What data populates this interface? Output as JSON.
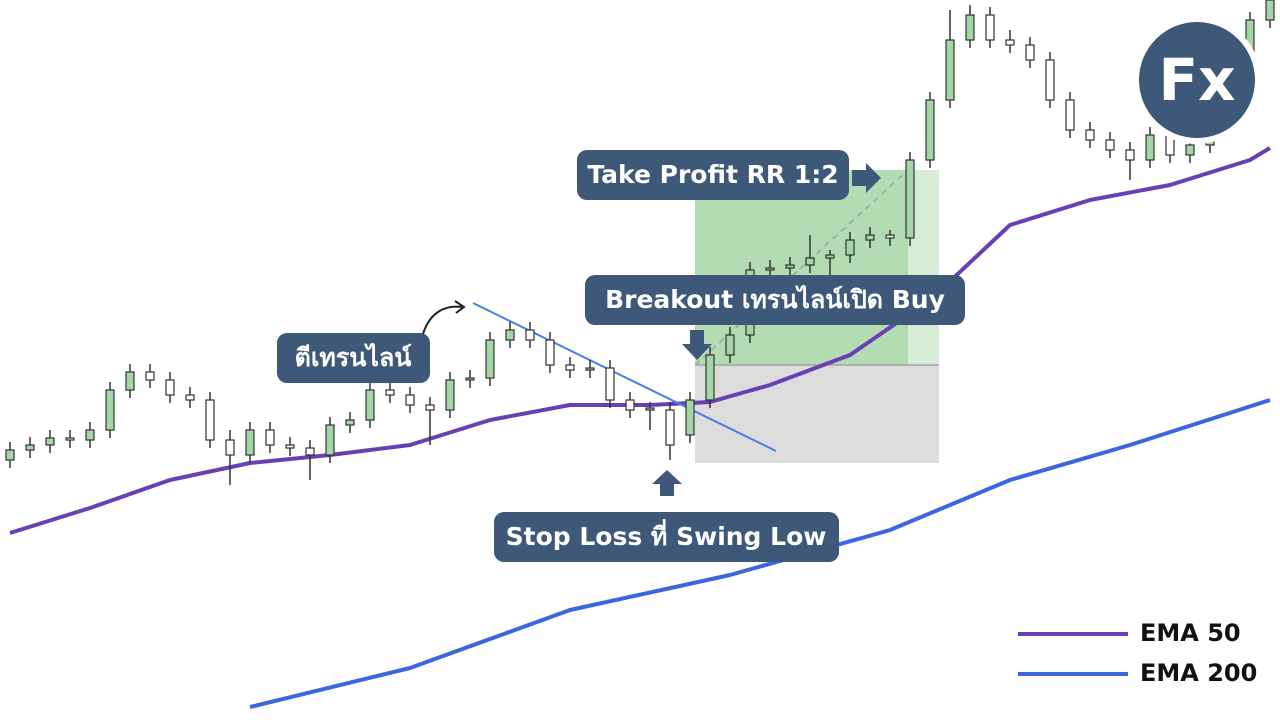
{
  "chart_data": {
    "type": "candlestick",
    "ylim": [
      0,
      720
    ],
    "up_color": "#a5d6a7",
    "down_color": "#ffffff",
    "wick_color": "#333333",
    "ohlc": [
      [
        260,
        278,
        252,
        270
      ],
      [
        270,
        283,
        262,
        275
      ],
      [
        275,
        290,
        267,
        282
      ],
      [
        282,
        290,
        272,
        280
      ],
      [
        280,
        298,
        272,
        290
      ],
      [
        290,
        338,
        282,
        330
      ],
      [
        330,
        356,
        322,
        348
      ],
      [
        348,
        356,
        332,
        340
      ],
      [
        340,
        348,
        317,
        325
      ],
      [
        325,
        333,
        312,
        320
      ],
      [
        320,
        328,
        272,
        280
      ],
      [
        280,
        290,
        235,
        265
      ],
      [
        265,
        298,
        257,
        290
      ],
      [
        290,
        298,
        267,
        275
      ],
      [
        275,
        283,
        264,
        272
      ],
      [
        272,
        280,
        240,
        265
      ],
      [
        265,
        303,
        257,
        295
      ],
      [
        295,
        308,
        287,
        300
      ],
      [
        300,
        338,
        292,
        330
      ],
      [
        330,
        338,
        317,
        325
      ],
      [
        325,
        333,
        307,
        315
      ],
      [
        315,
        323,
        275,
        310
      ],
      [
        310,
        348,
        302,
        340
      ],
      [
        340,
        350,
        332,
        342
      ],
      [
        342,
        388,
        334,
        380
      ],
      [
        380,
        398,
        372,
        390
      ],
      [
        390,
        398,
        372,
        380
      ],
      [
        380,
        388,
        347,
        355
      ],
      [
        355,
        363,
        342,
        350
      ],
      [
        350,
        360,
        342,
        352
      ],
      [
        352,
        360,
        312,
        320
      ],
      [
        320,
        328,
        302,
        310
      ],
      [
        310,
        318,
        290,
        312
      ],
      [
        310,
        318,
        260,
        275
      ],
      [
        285,
        328,
        277,
        320
      ],
      [
        320,
        373,
        312,
        365
      ],
      [
        365,
        393,
        357,
        385
      ],
      [
        385,
        458,
        377,
        450
      ],
      [
        450,
        460,
        442,
        452
      ],
      [
        452,
        463,
        444,
        455
      ],
      [
        455,
        485,
        447,
        462
      ],
      [
        462,
        470,
        440,
        465
      ],
      [
        465,
        488,
        457,
        480
      ],
      [
        480,
        493,
        472,
        485
      ],
      [
        485,
        490,
        474,
        482
      ],
      [
        482,
        568,
        474,
        560
      ],
      [
        560,
        628,
        552,
        620
      ],
      [
        620,
        710,
        612,
        680
      ],
      [
        680,
        715,
        672,
        705
      ],
      [
        705,
        713,
        672,
        680
      ],
      [
        680,
        690,
        667,
        675
      ],
      [
        675,
        683,
        652,
        660
      ],
      [
        660,
        668,
        612,
        620
      ],
      [
        620,
        628,
        582,
        590
      ],
      [
        590,
        598,
        572,
        580
      ],
      [
        580,
        588,
        562,
        570
      ],
      [
        570,
        578,
        540,
        560
      ],
      [
        560,
        593,
        552,
        585
      ],
      [
        585,
        593,
        557,
        565
      ],
      [
        565,
        583,
        557,
        575
      ],
      [
        575,
        608,
        567,
        600
      ],
      [
        600,
        648,
        592,
        640
      ],
      [
        640,
        708,
        632,
        700
      ],
      [
        700,
        728,
        692,
        720
      ]
    ],
    "series": [
      {
        "name": "EMA 50",
        "color": "#6a3fb5",
        "x": [
          0,
          4,
          8,
          12,
          16,
          20,
          24,
          28,
          32,
          35,
          38,
          42,
          46,
          50,
          54,
          58,
          62,
          63
        ],
        "values": [
          187,
          212,
          240,
          257,
          265,
          275,
          300,
          315,
          315,
          318,
          335,
          365,
          420,
          495,
          520,
          535,
          560,
          572
        ]
      },
      {
        "name": "EMA 200",
        "color": "#3a66e0",
        "x": [
          12,
          20,
          28,
          36,
          44,
          50,
          56,
          63
        ],
        "values": [
          13,
          52,
          110,
          145,
          190,
          240,
          275,
          320
        ]
      }
    ],
    "trendline": {
      "color": "#4a7ee8",
      "from": [
        23.15,
        417
      ],
      "to": [
        38.3,
        269
      ]
    },
    "position": {
      "start": 34.25,
      "end": 46.45,
      "tp_end": 44.9,
      "entry": 355,
      "take_profit": 550,
      "stop_loss": 257
    },
    "annotations": {
      "take_profit": "Take Profit RR 1:2",
      "breakout": "Breakout เทรนไลน์เปิด Buy",
      "touch": "ตีเทรนไลน์",
      "stop_loss": "Stop Loss ที่ Swing Low"
    },
    "logo": "Fx"
  }
}
